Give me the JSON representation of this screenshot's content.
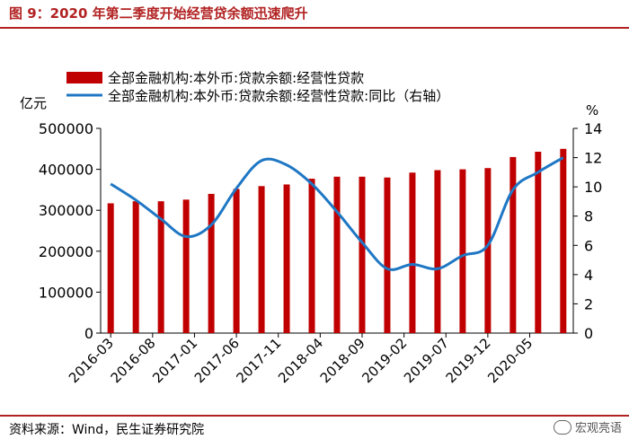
{
  "figure": {
    "title": "图 9：2020 年第二季度开始经营贷余额迅速爬升",
    "source": "资料来源：Wind，民生证券研究院",
    "watermark": "宏观亮语"
  },
  "colors": {
    "bar": "#c00000",
    "line": "#1f77c4",
    "accent": "#b22222"
  },
  "chart_data": {
    "type": "bar",
    "left_unit": "亿元",
    "right_unit": "%",
    "left_axis": {
      "min": 0,
      "max": 500000,
      "ticks": [
        "0",
        "100000",
        "200000",
        "300000",
        "400000",
        "500000"
      ]
    },
    "right_axis": {
      "min": 0,
      "max": 14,
      "ticks": [
        "0",
        "2",
        "4",
        "6",
        "8",
        "10",
        "12",
        "14"
      ]
    },
    "tick_labels": [
      "2016-03",
      "2016-08",
      "2017-01",
      "2017-06",
      "2017-11",
      "2018-04",
      "2018-09",
      "2019-02",
      "2019-07",
      "2019-12",
      "2020-05"
    ],
    "series": [
      {
        "name": "全部金融机构:本外币:贷款余额:经营性贷款",
        "type": "bar",
        "axis": "left",
        "x": [
          "2016-03",
          "2016-06",
          "2016-09",
          "2016-12",
          "2017-03",
          "2017-06",
          "2017-09",
          "2017-12",
          "2018-03",
          "2018-06",
          "2018-09",
          "2018-12",
          "2019-03",
          "2019-06",
          "2019-09",
          "2019-12",
          "2020-03",
          "2020-06",
          "2020-09"
        ],
        "values": [
          317000,
          322000,
          322000,
          326000,
          340000,
          352000,
          359000,
          363000,
          377000,
          382000,
          382000,
          380000,
          392000,
          398000,
          400000,
          403000,
          430000,
          443000,
          450000
        ]
      },
      {
        "name": "全部金融机构:本外币:贷款余额:经营性贷款:同比（右轴）",
        "type": "line",
        "axis": "right",
        "x": [
          "2016-03",
          "2016-06",
          "2016-09",
          "2016-12",
          "2017-03",
          "2017-06",
          "2017-09",
          "2017-12",
          "2018-03",
          "2018-06",
          "2018-09",
          "2018-12",
          "2019-03",
          "2019-06",
          "2019-09",
          "2019-12",
          "2020-03",
          "2020-06",
          "2020-09"
        ],
        "values": [
          10.2,
          9.1,
          7.8,
          6.6,
          7.4,
          9.9,
          11.8,
          11.5,
          10.2,
          8.3,
          6.2,
          4.4,
          4.7,
          4.4,
          5.3,
          6.0,
          9.8,
          11.0,
          12.0
        ]
      }
    ],
    "legend_position": "top",
    "grid": false
  }
}
